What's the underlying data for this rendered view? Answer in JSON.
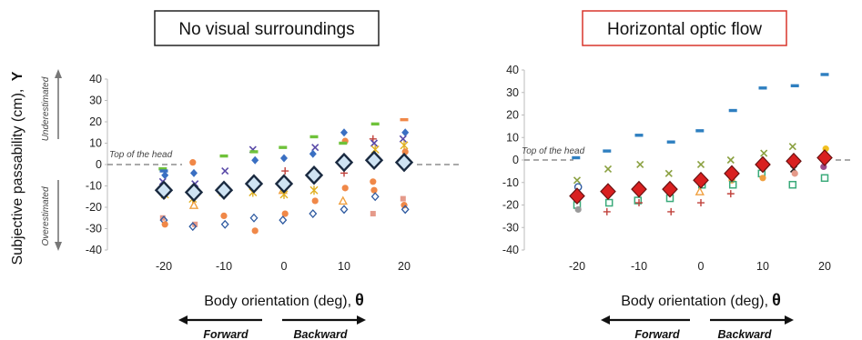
{
  "y_axis_label": "Subjective passability (cm),",
  "y_axis_symbol": "Y",
  "upper_note": "Underestimated",
  "lower_note": "Overestimated",
  "head_note": "Top of the head",
  "chart_data": [
    {
      "type": "scatter",
      "title": "No visual surroundings",
      "title_box_color": "#222222",
      "xlabel": "Body orientation (deg),",
      "xlabel_symbol": "θ",
      "xlim": [
        -30,
        30
      ],
      "ylim": [
        -40,
        40
      ],
      "xticks": [
        -20,
        -10,
        0,
        10,
        20
      ],
      "yticks": [
        40,
        30,
        20,
        10,
        0,
        -10,
        -20,
        -30,
        -40
      ],
      "reference_line_y": 0,
      "direction_left": "Forward",
      "direction_right": "Backward",
      "mean": {
        "x": [
          -20,
          -15,
          -10,
          -5,
          0,
          5,
          10,
          15,
          20
        ],
        "y": [
          -12,
          -13,
          -12,
          -9,
          -9,
          -5,
          1,
          2,
          1
        ]
      },
      "points": [
        {
          "x": -20,
          "y": -2,
          "m": "dash",
          "c": "#6fc23a"
        },
        {
          "x": -20,
          "y": -3,
          "m": "dash",
          "c": "#3a6fc2"
        },
        {
          "x": -20,
          "y": -5,
          "m": "diamond",
          "c": "#3a6fc2"
        },
        {
          "x": -20,
          "y": -8,
          "m": "x",
          "c": "#5a4aa8"
        },
        {
          "x": -20,
          "y": -10,
          "m": "plus",
          "c": "#c0403a"
        },
        {
          "x": -20,
          "y": -14,
          "m": "star",
          "c": "#e0b020"
        },
        {
          "x": -20,
          "y": -25,
          "m": "square",
          "c": "#e59a8a"
        },
        {
          "x": -20,
          "y": -26,
          "m": "odiamond",
          "c": "#2e5aa0"
        },
        {
          "x": -20,
          "y": -28,
          "m": "circle",
          "c": "#f08848"
        },
        {
          "x": -15,
          "y": 1,
          "m": "circle",
          "c": "#f08848"
        },
        {
          "x": -15,
          "y": -4,
          "m": "diamond",
          "c": "#3a6fc2"
        },
        {
          "x": -15,
          "y": -9,
          "m": "x",
          "c": "#5a4aa8"
        },
        {
          "x": -15,
          "y": -16,
          "m": "star",
          "c": "#e0b020"
        },
        {
          "x": -15,
          "y": -19,
          "m": "triangle",
          "c": "#f0a040"
        },
        {
          "x": -15,
          "y": -28,
          "m": "square",
          "c": "#e59a8a"
        },
        {
          "x": -15,
          "y": -29,
          "m": "odiamond",
          "c": "#2e5aa0"
        },
        {
          "x": -10,
          "y": 4,
          "m": "dash",
          "c": "#6fc23a"
        },
        {
          "x": -10,
          "y": -3,
          "m": "x",
          "c": "#5a4aa8"
        },
        {
          "x": -10,
          "y": -13,
          "m": "star",
          "c": "#e0b020"
        },
        {
          "x": -10,
          "y": -24,
          "m": "circle",
          "c": "#f08848"
        },
        {
          "x": -10,
          "y": -28,
          "m": "odiamond",
          "c": "#2e5aa0"
        },
        {
          "x": -5,
          "y": 7,
          "m": "x",
          "c": "#5a4aa8"
        },
        {
          "x": -5,
          "y": 6,
          "m": "dash",
          "c": "#6fc23a"
        },
        {
          "x": -5,
          "y": 2,
          "m": "diamond",
          "c": "#3a6fc2"
        },
        {
          "x": -5,
          "y": -13,
          "m": "star",
          "c": "#e0b020"
        },
        {
          "x": -5,
          "y": -25,
          "m": "odiamond",
          "c": "#2e5aa0"
        },
        {
          "x": -5,
          "y": -31,
          "m": "circle",
          "c": "#f08848"
        },
        {
          "x": 0,
          "y": 8,
          "m": "dash",
          "c": "#6fc23a"
        },
        {
          "x": 0,
          "y": 3,
          "m": "diamond",
          "c": "#3a6fc2"
        },
        {
          "x": 0,
          "y": -3,
          "m": "plus",
          "c": "#c0403a"
        },
        {
          "x": 0,
          "y": -12,
          "m": "triangle",
          "c": "#f0a040"
        },
        {
          "x": 0,
          "y": -14,
          "m": "star",
          "c": "#e0b020"
        },
        {
          "x": 0,
          "y": -23,
          "m": "circle",
          "c": "#f08848"
        },
        {
          "x": 0,
          "y": -26,
          "m": "odiamond",
          "c": "#2e5aa0"
        },
        {
          "x": 5,
          "y": 13,
          "m": "dash",
          "c": "#6fc23a"
        },
        {
          "x": 5,
          "y": 8,
          "m": "x",
          "c": "#5a4aa8"
        },
        {
          "x": 5,
          "y": 5,
          "m": "diamond",
          "c": "#3a6fc2"
        },
        {
          "x": 5,
          "y": -12,
          "m": "star",
          "c": "#e0b020"
        },
        {
          "x": 5,
          "y": -17,
          "m": "circle",
          "c": "#f08848"
        },
        {
          "x": 5,
          "y": -23,
          "m": "odiamond",
          "c": "#2e5aa0"
        },
        {
          "x": 10,
          "y": 15,
          "m": "diamond",
          "c": "#3a6fc2"
        },
        {
          "x": 10,
          "y": 11,
          "m": "circle",
          "c": "#f08848"
        },
        {
          "x": 10,
          "y": 10,
          "m": "dash",
          "c": "#6fc23a"
        },
        {
          "x": 10,
          "y": -4,
          "m": "plus",
          "c": "#c0403a"
        },
        {
          "x": 10,
          "y": -11,
          "m": "circle",
          "c": "#f08848"
        },
        {
          "x": 10,
          "y": -17,
          "m": "triangle",
          "c": "#f0a040"
        },
        {
          "x": 10,
          "y": -21,
          "m": "odiamond",
          "c": "#2e5aa0"
        },
        {
          "x": 15,
          "y": 19,
          "m": "dash",
          "c": "#6fc23a"
        },
        {
          "x": 15,
          "y": 12,
          "m": "plus",
          "c": "#c0403a"
        },
        {
          "x": 15,
          "y": 10,
          "m": "x",
          "c": "#5a4aa8"
        },
        {
          "x": 15,
          "y": 7,
          "m": "star",
          "c": "#e0b020"
        },
        {
          "x": 15,
          "y": -8,
          "m": "circle",
          "c": "#f08848"
        },
        {
          "x": 15,
          "y": -12,
          "m": "circle",
          "c": "#f08848"
        },
        {
          "x": 15,
          "y": -15,
          "m": "odiamond",
          "c": "#2e5aa0"
        },
        {
          "x": 15,
          "y": -23,
          "m": "square",
          "c": "#e59a8a"
        },
        {
          "x": 20,
          "y": 21,
          "m": "dash",
          "c": "#f08848"
        },
        {
          "x": 20,
          "y": 15,
          "m": "diamond",
          "c": "#3a6fc2"
        },
        {
          "x": 20,
          "y": 12,
          "m": "x",
          "c": "#5a4aa8"
        },
        {
          "x": 20,
          "y": 9,
          "m": "star",
          "c": "#e0b020"
        },
        {
          "x": 20,
          "y": 6,
          "m": "circle",
          "c": "#f08848"
        },
        {
          "x": 20,
          "y": -16,
          "m": "square",
          "c": "#e59a8a"
        },
        {
          "x": 20,
          "y": -19,
          "m": "circle",
          "c": "#f08848"
        },
        {
          "x": 20,
          "y": -21,
          "m": "odiamond",
          "c": "#2e5aa0"
        }
      ]
    },
    {
      "type": "scatter",
      "title": "Horizontal optic flow",
      "title_box_color": "#d9352b",
      "xlabel": "Body orientation (deg),",
      "xlabel_symbol": "θ",
      "xlim": [
        -30,
        30
      ],
      "ylim": [
        -40,
        40
      ],
      "xticks": [
        -20,
        -10,
        0,
        10,
        20
      ],
      "yticks": [
        40,
        30,
        20,
        10,
        0,
        -10,
        -20,
        -30,
        -40
      ],
      "reference_line_y": 0,
      "direction_left": "Forward",
      "direction_right": "Backward",
      "mean": {
        "x": [
          -20,
          -15,
          -10,
          -5,
          0,
          5,
          10,
          15,
          20
        ],
        "y": [
          -16,
          -14,
          -13,
          -13,
          -9,
          -6,
          -2,
          -0.5,
          1
        ]
      },
      "points": [
        {
          "x": -20,
          "y": 1,
          "m": "dash",
          "c": "#2e7fc0"
        },
        {
          "x": -20,
          "y": -9,
          "m": "x",
          "c": "#8aa040"
        },
        {
          "x": -20,
          "y": -12,
          "m": "ocircle",
          "c": "#2e5aa0"
        },
        {
          "x": -20,
          "y": -15,
          "m": "triangle",
          "c": "#f0a040"
        },
        {
          "x": -20,
          "y": -20,
          "m": "osquare",
          "c": "#3aaa7a"
        },
        {
          "x": -20,
          "y": -22,
          "m": "circle",
          "c": "#9a9a9a"
        },
        {
          "x": -15,
          "y": 4,
          "m": "dash",
          "c": "#2e7fc0"
        },
        {
          "x": -15,
          "y": -4,
          "m": "x",
          "c": "#8aa040"
        },
        {
          "x": -15,
          "y": -19,
          "m": "osquare",
          "c": "#3aaa7a"
        },
        {
          "x": -15,
          "y": -23,
          "m": "plus",
          "c": "#c0403a"
        },
        {
          "x": -10,
          "y": 11,
          "m": "dash",
          "c": "#2e7fc0"
        },
        {
          "x": -10,
          "y": -2,
          "m": "x",
          "c": "#8aa040"
        },
        {
          "x": -10,
          "y": -18,
          "m": "osquare",
          "c": "#3aaa7a"
        },
        {
          "x": -10,
          "y": -19,
          "m": "plus",
          "c": "#c0403a"
        },
        {
          "x": -5,
          "y": 8,
          "m": "dash",
          "c": "#2e7fc0"
        },
        {
          "x": -5,
          "y": -6,
          "m": "x",
          "c": "#8aa040"
        },
        {
          "x": -5,
          "y": -17,
          "m": "osquare",
          "c": "#3aaa7a"
        },
        {
          "x": -5,
          "y": -23,
          "m": "plus",
          "c": "#c0403a"
        },
        {
          "x": 0,
          "y": 13,
          "m": "dash",
          "c": "#2e7fc0"
        },
        {
          "x": 0,
          "y": -2,
          "m": "x",
          "c": "#8aa040"
        },
        {
          "x": 0,
          "y": -11,
          "m": "osquare",
          "c": "#3aaa7a"
        },
        {
          "x": 0,
          "y": -14,
          "m": "triangle",
          "c": "#f0a040"
        },
        {
          "x": 0,
          "y": -19,
          "m": "plus",
          "c": "#c0403a"
        },
        {
          "x": 5,
          "y": 22,
          "m": "dash",
          "c": "#2e7fc0"
        },
        {
          "x": 5,
          "y": 0,
          "m": "x",
          "c": "#8aa040"
        },
        {
          "x": 5,
          "y": -9,
          "m": "circle",
          "c": "#f0a040"
        },
        {
          "x": 5,
          "y": -11,
          "m": "osquare",
          "c": "#3aaa7a"
        },
        {
          "x": 5,
          "y": -15,
          "m": "plus",
          "c": "#c0403a"
        },
        {
          "x": 10,
          "y": 32,
          "m": "dash",
          "c": "#2e7fc0"
        },
        {
          "x": 10,
          "y": 3,
          "m": "x",
          "c": "#8aa040"
        },
        {
          "x": 10,
          "y": -6,
          "m": "osquare",
          "c": "#3aaa7a"
        },
        {
          "x": 10,
          "y": -8,
          "m": "circle",
          "c": "#f0a040"
        },
        {
          "x": 15,
          "y": 33,
          "m": "dash",
          "c": "#2e7fc0"
        },
        {
          "x": 15,
          "y": 6,
          "m": "x",
          "c": "#8aa040"
        },
        {
          "x": 15,
          "y": -4,
          "m": "xdark",
          "c": "#222222"
        },
        {
          "x": 15,
          "y": -6,
          "m": "circle",
          "c": "#e59a8a"
        },
        {
          "x": 15,
          "y": -11,
          "m": "osquare",
          "c": "#3aaa7a"
        },
        {
          "x": 20,
          "y": 38,
          "m": "dash",
          "c": "#2e7fc0"
        },
        {
          "x": 20,
          "y": 5,
          "m": "circle",
          "c": "#f2c020"
        },
        {
          "x": 20,
          "y": -3,
          "m": "circle",
          "c": "#9a4a8a"
        },
        {
          "x": 20,
          "y": -8,
          "m": "osquare",
          "c": "#3aaa7a"
        }
      ]
    }
  ]
}
